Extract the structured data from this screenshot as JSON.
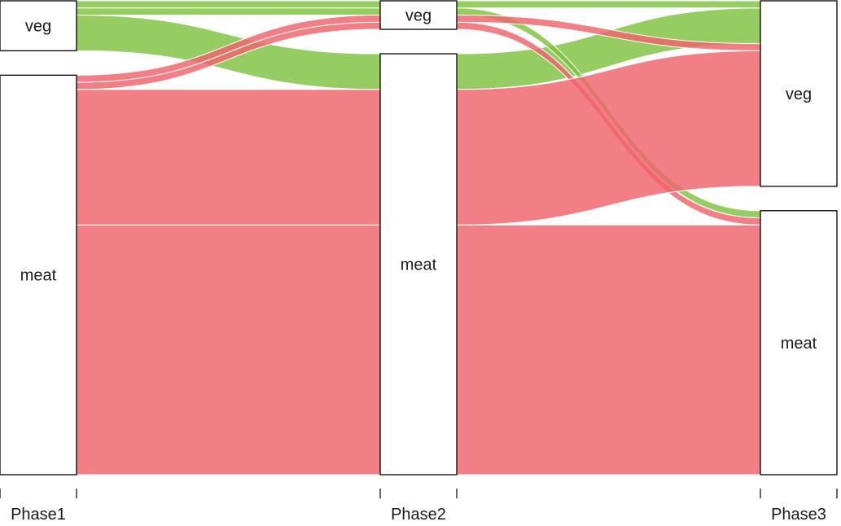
{
  "chart_data": {
    "type": "alluvial",
    "title": "",
    "axes": [
      "Phase1",
      "Phase2",
      "Phase3"
    ],
    "categories": [
      "veg",
      "meat"
    ],
    "colors": {
      "veg": "#7fc241",
      "meat": "#f0636b"
    },
    "flow_colored_by": "Phase1",
    "flows": [
      {
        "path": [
          "veg",
          "veg",
          "veg"
        ],
        "value": 1
      },
      {
        "path": [
          "veg",
          "veg",
          "meat"
        ],
        "value": 1
      },
      {
        "path": [
          "veg",
          "meat",
          "veg"
        ],
        "value": 5
      },
      {
        "path": [
          "veg",
          "meat",
          "meat"
        ],
        "value": 0
      },
      {
        "path": [
          "meat",
          "veg",
          "veg"
        ],
        "value": 1
      },
      {
        "path": [
          "meat",
          "veg",
          "meat"
        ],
        "value": 1
      },
      {
        "path": [
          "meat",
          "meat",
          "veg"
        ],
        "value": 19
      },
      {
        "path": [
          "meat",
          "meat",
          "meat"
        ],
        "value": 35
      }
    ],
    "flows_order": "order in which flows are drawn (back to front) follows the list above; last drawn = on top",
    "draw_order": [
      2,
      5,
      1,
      4,
      0,
      3,
      6,
      7
    ]
  }
}
